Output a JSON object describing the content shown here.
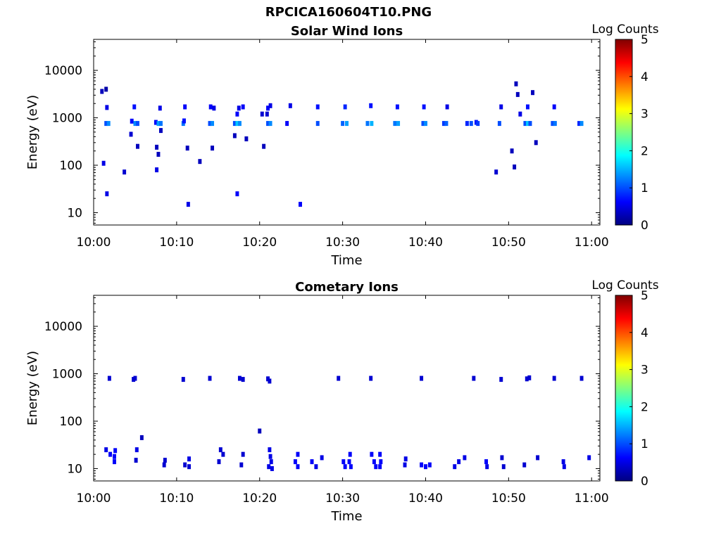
{
  "figure_title": "RPCICA160604T10.PNG",
  "chart_data": [
    {
      "type": "heatmap",
      "title": "Solar Wind Ions",
      "xlabel": "Time",
      "ylabel": "Energy (eV)",
      "x_ticks": [
        "10:00",
        "10:10",
        "10:20",
        "10:30",
        "10:40",
        "10:50",
        "11:00"
      ],
      "y_ticks": [
        "10",
        "100",
        "1000",
        "10000"
      ],
      "xlim_minutes_after_1000": [
        0,
        61
      ],
      "ylim_eV": [
        5.5,
        45000
      ],
      "y_scale": "log",
      "colorbar": {
        "label": "Log Counts",
        "range": [
          0,
          5
        ],
        "ticks": [
          "0",
          "1",
          "2",
          "3",
          "4",
          "5"
        ]
      },
      "cells": [
        [
          1.0,
          3600,
          0.3
        ],
        [
          1.5,
          4000,
          0.2
        ],
        [
          1.2,
          110,
          0.5
        ],
        [
          1.6,
          25,
          0.5
        ],
        [
          1.6,
          1650,
          0.5
        ],
        [
          1.5,
          760,
          1.0
        ],
        [
          1.8,
          760,
          1.3
        ],
        [
          3.7,
          72,
          0.4
        ],
        [
          4.5,
          450,
          0.4
        ],
        [
          4.6,
          850,
          0.6
        ],
        [
          5.0,
          760,
          1.3
        ],
        [
          5.3,
          760,
          1.0
        ],
        [
          4.9,
          1700,
          0.7
        ],
        [
          5.3,
          250,
          0.3
        ],
        [
          7.5,
          800,
          0.6
        ],
        [
          7.8,
          760,
          1.4
        ],
        [
          8.1,
          760,
          1.2
        ],
        [
          7.6,
          80,
          0.5
        ],
        [
          7.8,
          170,
          0.3
        ],
        [
          8.1,
          540,
          0.3
        ],
        [
          8.0,
          1600,
          0.5
        ],
        [
          7.6,
          240,
          0.3
        ],
        [
          10.8,
          760,
          1.2
        ],
        [
          10.9,
          860,
          0.7
        ],
        [
          11.0,
          1700,
          0.6
        ],
        [
          11.3,
          230,
          0.3
        ],
        [
          11.4,
          15,
          0.5
        ],
        [
          12.8,
          120,
          0.3
        ],
        [
          14.0,
          760,
          1.0
        ],
        [
          14.3,
          760,
          1.3
        ],
        [
          14.1,
          1700,
          0.6
        ],
        [
          14.5,
          1600,
          0.5
        ],
        [
          14.3,
          230,
          0.3
        ],
        [
          17.0,
          760,
          1.0
        ],
        [
          17.3,
          760,
          1.6
        ],
        [
          17.6,
          760,
          1.3
        ],
        [
          17.3,
          25,
          0.6
        ],
        [
          17.0,
          420,
          0.3
        ],
        [
          17.3,
          1200,
          0.6
        ],
        [
          17.5,
          1600,
          0.5
        ],
        [
          18.0,
          1700,
          0.6
        ],
        [
          18.4,
          360,
          0.3
        ],
        [
          20.3,
          1200,
          0.4
        ],
        [
          20.5,
          250,
          0.3
        ],
        [
          20.9,
          1200,
          0.4
        ],
        [
          21.0,
          760,
          1.0
        ],
        [
          21.3,
          760,
          1.3
        ],
        [
          21.0,
          1600,
          0.6
        ],
        [
          21.3,
          1800,
          0.5
        ],
        [
          23.3,
          760,
          0.6
        ],
        [
          23.7,
          1800,
          0.5
        ],
        [
          24.9,
          15,
          0.6
        ],
        [
          27.0,
          760,
          1.0
        ],
        [
          27.0,
          1700,
          0.7
        ],
        [
          30.0,
          760,
          1.1
        ],
        [
          30.5,
          760,
          1.4
        ],
        [
          30.3,
          1700,
          0.8
        ],
        [
          33.0,
          760,
          1.2
        ],
        [
          33.5,
          760,
          1.5
        ],
        [
          33.4,
          1800,
          0.7
        ],
        [
          36.3,
          760,
          1.2
        ],
        [
          36.7,
          760,
          1.4
        ],
        [
          36.6,
          1700,
          0.7
        ],
        [
          39.7,
          760,
          1.0
        ],
        [
          40.0,
          760,
          1.3
        ],
        [
          39.8,
          1700,
          0.7
        ],
        [
          42.2,
          760,
          0.9
        ],
        [
          42.5,
          760,
          1.1
        ],
        [
          42.6,
          1700,
          0.5
        ],
        [
          45.0,
          760,
          0.8
        ],
        [
          45.5,
          760,
          1.0
        ],
        [
          46.1,
          800,
          0.7
        ],
        [
          46.3,
          760,
          0.9
        ],
        [
          48.5,
          72,
          0.4
        ],
        [
          48.9,
          760,
          1.0
        ],
        [
          49.1,
          1700,
          0.5
        ],
        [
          50.4,
          200,
          0.3
        ],
        [
          50.7,
          92,
          0.3
        ],
        [
          50.9,
          5200,
          0.3
        ],
        [
          51.1,
          3100,
          0.3
        ],
        [
          51.4,
          1200,
          0.5
        ],
        [
          52.0,
          760,
          1.0
        ],
        [
          52.3,
          760,
          1.6
        ],
        [
          52.6,
          760,
          1.0
        ],
        [
          52.3,
          1700,
          0.7
        ],
        [
          52.9,
          3400,
          0.3
        ],
        [
          53.3,
          300,
          0.3
        ],
        [
          55.3,
          760,
          1.0
        ],
        [
          55.6,
          760,
          1.2
        ],
        [
          55.5,
          1700,
          0.6
        ],
        [
          58.5,
          760,
          0.8
        ],
        [
          58.8,
          760,
          1.3
        ]
      ]
    },
    {
      "type": "heatmap",
      "title": "Cometary Ions",
      "xlabel": "Time",
      "ylabel": "Energy (eV)",
      "x_ticks": [
        "10:00",
        "10:10",
        "10:20",
        "10:30",
        "10:40",
        "10:50",
        "11:00"
      ],
      "y_ticks": [
        "10",
        "100",
        "1000",
        "10000"
      ],
      "xlim_minutes_after_1000": [
        0,
        61
      ],
      "ylim_eV": [
        5.5,
        45000
      ],
      "y_scale": "log",
      "colorbar": {
        "label": "Log Counts",
        "range": [
          0,
          5
        ],
        "ticks": [
          "0",
          "1",
          "2",
          "3",
          "4",
          "5"
        ]
      },
      "cells": [
        [
          1.9,
          800,
          0.4
        ],
        [
          4.8,
          760,
          0.4
        ],
        [
          5.0,
          800,
          0.4
        ],
        [
          10.8,
          760,
          0.4
        ],
        [
          14.0,
          800,
          0.4
        ],
        [
          17.6,
          800,
          0.4
        ],
        [
          18.0,
          760,
          0.4
        ],
        [
          21.0,
          780,
          0.4
        ],
        [
          21.2,
          700,
          0.4
        ],
        [
          29.5,
          800,
          0.4
        ],
        [
          33.4,
          800,
          0.4
        ],
        [
          39.5,
          800,
          0.4
        ],
        [
          45.8,
          800,
          0.4
        ],
        [
          49.1,
          760,
          0.4
        ],
        [
          52.2,
          780,
          0.4
        ],
        [
          52.5,
          820,
          0.4
        ],
        [
          55.5,
          800,
          0.4
        ],
        [
          58.8,
          800,
          0.4
        ],
        [
          5.8,
          45,
          0.3
        ],
        [
          20.0,
          62,
          0.3
        ],
        [
          1.5,
          25,
          0.5
        ],
        [
          2.0,
          20,
          0.6
        ],
        [
          2.5,
          18,
          0.6
        ],
        [
          2.6,
          24,
          0.6
        ],
        [
          2.5,
          14,
          0.6
        ],
        [
          5.2,
          25,
          0.5
        ],
        [
          5.1,
          15,
          0.4
        ],
        [
          8.5,
          12,
          0.4
        ],
        [
          8.6,
          15,
          0.4
        ],
        [
          11.0,
          12,
          0.4
        ],
        [
          11.5,
          16,
          0.5
        ],
        [
          11.5,
          11,
          0.4
        ],
        [
          15.3,
          25,
          0.4
        ],
        [
          15.1,
          14,
          0.4
        ],
        [
          15.6,
          20,
          0.4
        ],
        [
          17.8,
          12,
          0.4
        ],
        [
          18.0,
          20,
          0.4
        ],
        [
          21.2,
          25,
          0.5
        ],
        [
          21.3,
          18,
          0.5
        ],
        [
          21.4,
          14,
          0.5
        ],
        [
          21.1,
          11,
          0.5
        ],
        [
          21.5,
          10,
          0.5
        ],
        [
          24.6,
          20,
          0.6
        ],
        [
          24.3,
          14,
          0.6
        ],
        [
          24.6,
          11,
          0.6
        ],
        [
          26.3,
          14,
          0.6
        ],
        [
          26.8,
          11,
          0.5
        ],
        [
          27.5,
          17,
          0.5
        ],
        [
          30.1,
          14,
          0.6
        ],
        [
          30.3,
          11,
          0.6
        ],
        [
          30.9,
          20,
          0.6
        ],
        [
          30.8,
          14,
          0.6
        ],
        [
          31.0,
          11,
          0.6
        ],
        [
          33.5,
          20,
          0.6
        ],
        [
          33.8,
          14,
          0.6
        ],
        [
          34.0,
          11,
          0.6
        ],
        [
          34.5,
          20,
          0.6
        ],
        [
          34.6,
          14,
          0.6
        ],
        [
          34.5,
          11,
          0.6
        ],
        [
          37.6,
          16,
          0.5
        ],
        [
          37.5,
          12,
          0.5
        ],
        [
          39.5,
          12,
          0.6
        ],
        [
          40.0,
          11,
          0.6
        ],
        [
          40.5,
          12,
          0.6
        ],
        [
          43.5,
          11,
          0.5
        ],
        [
          44.0,
          14,
          0.5
        ],
        [
          44.7,
          17,
          0.5
        ],
        [
          47.3,
          14,
          0.6
        ],
        [
          47.4,
          11,
          0.5
        ],
        [
          49.2,
          17,
          0.4
        ],
        [
          49.4,
          11,
          0.4
        ],
        [
          51.9,
          12,
          0.4
        ],
        [
          53.5,
          17,
          0.4
        ],
        [
          56.6,
          14,
          0.5
        ],
        [
          56.7,
          11,
          0.5
        ],
        [
          59.7,
          17,
          0.5
        ]
      ]
    }
  ]
}
